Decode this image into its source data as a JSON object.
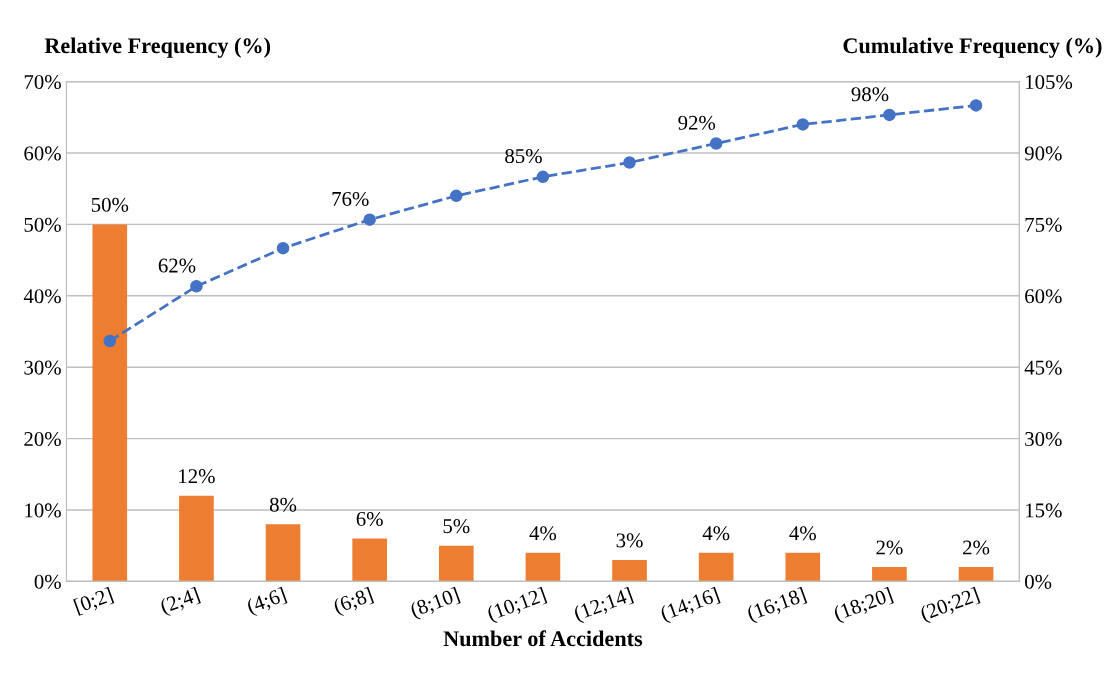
{
  "chart_data": {
    "type": "bar",
    "xlabel": "Number of Accidents",
    "ylabel": "Relative Frequency (%)",
    "y2label": "Cumulative Frequency (%)",
    "categories": [
      "[0;2]",
      "(2;4]",
      "(4;6]",
      "(6;8]",
      "(8;10]",
      "(10;12]",
      "(12;14]",
      "(14;16]",
      "(16;18]",
      "(18;20]",
      "(20;22]"
    ],
    "series": [
      {
        "color": "#ed7d31",
        "values": [
          50,
          12,
          8,
          6,
          5,
          4,
          3,
          4,
          4,
          2,
          2
        ],
        "value_labels": [
          "50%",
          "12%",
          "8%",
          "6%",
          "5%",
          "4%",
          "3%",
          "4%",
          "4%",
          "2%",
          "2%"
        ]
      },
      {
        "type": "line",
        "axis": "y2",
        "color": "#4472c4",
        "marker": "circle",
        "line_style": "dashed",
        "values": [
          50.5,
          62,
          70,
          76,
          81,
          85,
          88,
          92,
          96,
          98,
          100
        ],
        "value_labels": [
          null,
          "62%",
          null,
          "76%",
          null,
          "85%",
          null,
          "92%",
          null,
          "98%",
          null
        ]
      }
    ],
    "ylim": [
      0,
      70
    ],
    "yticks": [
      {
        "value": 0,
        "label": "0%"
      },
      {
        "value": 10,
        "label": "10%"
      },
      {
        "value": 20,
        "label": "20%"
      },
      {
        "value": 30,
        "label": "30%"
      },
      {
        "value": 40,
        "label": "40%"
      },
      {
        "value": 50,
        "label": "50%"
      },
      {
        "value": 60,
        "label": "60%"
      },
      {
        "value": 70,
        "label": "70%"
      }
    ],
    "y2lim": [
      0,
      105
    ],
    "y2ticks": [
      {
        "value": 0,
        "label": "0%"
      },
      {
        "value": 15,
        "label": "15%"
      },
      {
        "value": 30,
        "label": "30%"
      },
      {
        "value": 45,
        "label": "45%"
      },
      {
        "value": 60,
        "label": "60%"
      },
      {
        "value": 75,
        "label": "75%"
      },
      {
        "value": 90,
        "label": "90%"
      },
      {
        "value": 105,
        "label": "105%"
      }
    ],
    "grid": "y",
    "legend": false
  }
}
